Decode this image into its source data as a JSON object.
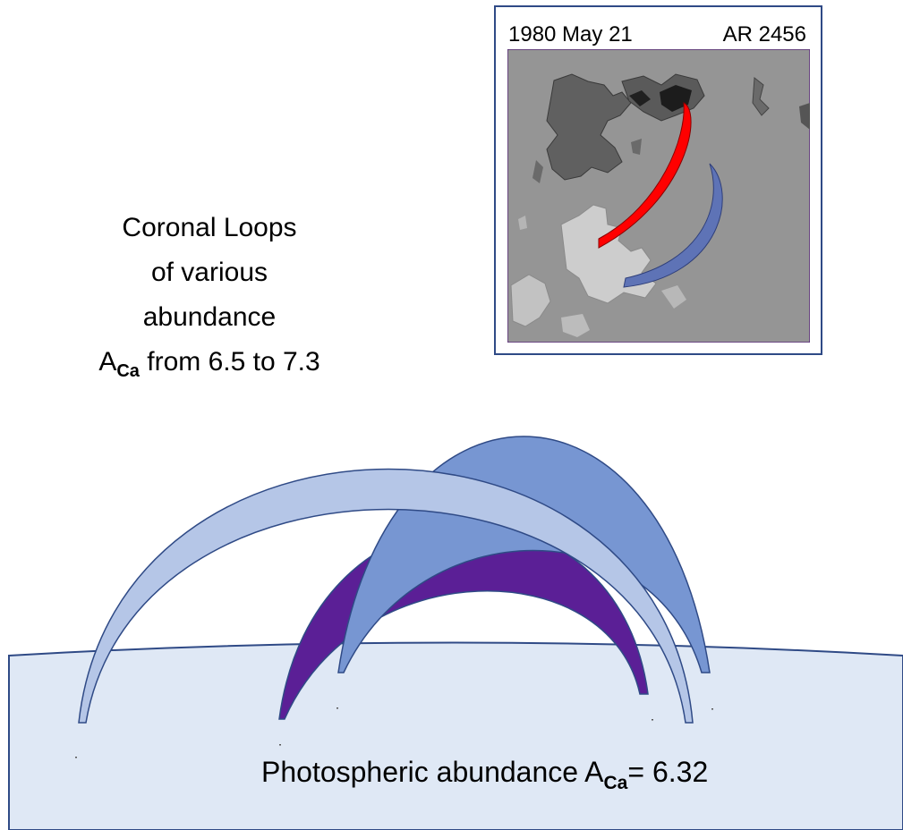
{
  "inset": {
    "date": "1980 May 21",
    "region": "AR 2456"
  },
  "caption": {
    "line1": "Coronal Loops",
    "line2": "of various",
    "line3": "abundance",
    "symbol": "A",
    "subscript": "Ca",
    "range_text": " from 6.5 to 7.3"
  },
  "photosphere": {
    "label": "Photospheric abundance A",
    "subscript": "Ca",
    "value_text": "= 6.32"
  },
  "colors": {
    "photosphere_fill": "#dfe8f5",
    "outline": "#2f4a86",
    "loop_light": "#b5c6e7",
    "loop_mid": "#7796d2",
    "loop_purple": "#5b1f96",
    "magnetogram_bg": "#959595",
    "red_loop": "#ff0000",
    "blue_loop": "#5e73b6"
  }
}
